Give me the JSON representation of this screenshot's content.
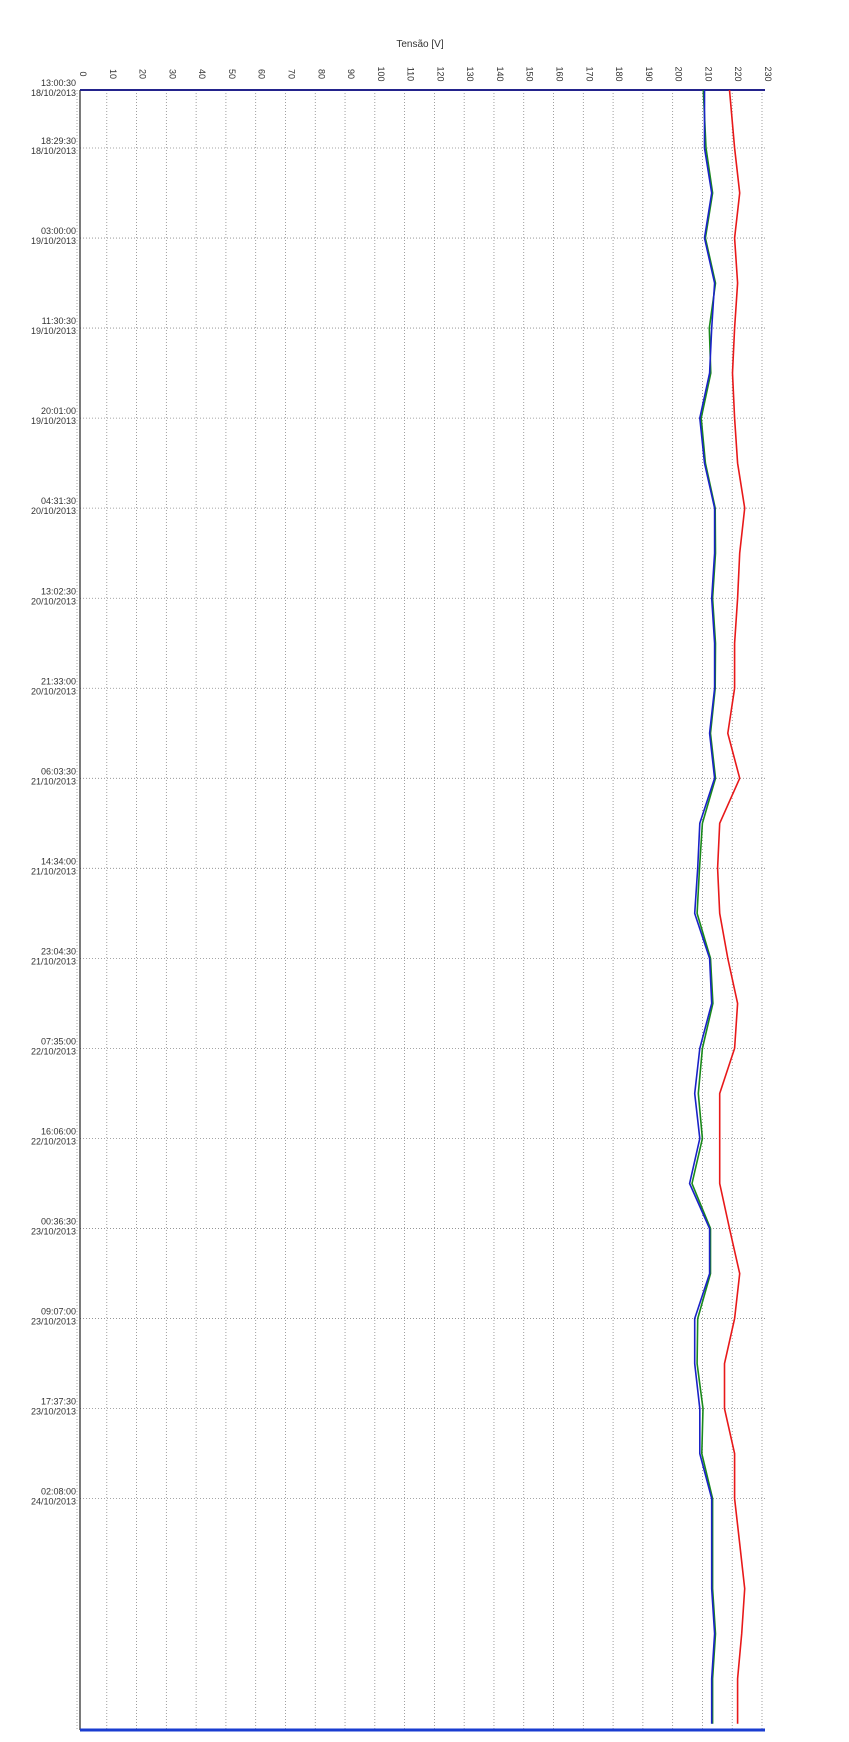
{
  "chart_data": {
    "type": "line",
    "orientation": "vertical-time",
    "title": "Tensão [V]",
    "x": [
      "2013-10-18T13:00:30",
      "2013-10-18T18:29:30",
      "2013-10-18T22:44:45",
      "2013-10-19T03:00:00",
      "2013-10-19T07:15:15",
      "2013-10-19T11:30:30",
      "2013-10-19T15:45:45",
      "2013-10-19T20:01:00",
      "2013-10-20T00:16:15",
      "2013-10-20T04:31:30",
      "2013-10-20T08:47:00",
      "2013-10-20T13:02:30",
      "2013-10-20T17:17:45",
      "2013-10-20T21:33:00",
      "2013-10-21T01:48:15",
      "2013-10-21T06:03:30",
      "2013-10-21T10:18:45",
      "2013-10-21T14:34:00",
      "2013-10-21T18:49:15",
      "2013-10-21T23:04:30",
      "2013-10-22T03:19:45",
      "2013-10-22T07:35:00",
      "2013-10-22T11:50:30",
      "2013-10-22T16:06:00",
      "2013-10-22T20:21:15",
      "2013-10-23T00:36:30",
      "2013-10-23T04:51:45",
      "2013-10-23T09:07:00",
      "2013-10-23T13:22:15",
      "2013-10-23T17:37:30",
      "2013-10-23T21:52:45",
      "2013-10-24T02:08:00",
      "2013-10-24T06:23:15",
      "2013-10-24T10:38:30",
      "2013-10-24T14:53:45",
      "2013-10-24T19:09:00",
      "2013-10-24T23:24:15"
    ],
    "series": [
      {
        "color": "#e8191a",
        "values": [
          219.1,
          220.8,
          222.5,
          220.8,
          221.8,
          220.8,
          220.1,
          220.8,
          221.8,
          224.2,
          222.5,
          221.8,
          220.8,
          220.8,
          218.5,
          222.5,
          215.8,
          215.1,
          215.8,
          218.5,
          221.8,
          220.8,
          215.8,
          215.8,
          215.8,
          219.1,
          222.5,
          220.8,
          217.4,
          217.4,
          220.8,
          220.8,
          222.5,
          224.2,
          223.2,
          221.8,
          221.8
        ]
      },
      {
        "color": "#1a8a1a",
        "values": [
          210.3,
          211.2,
          213.4,
          211.0,
          214.4,
          212.3,
          212.8,
          209.6,
          211.0,
          214.3,
          214.4,
          213.4,
          214.4,
          214.3,
          212.7,
          214.4,
          210.0,
          209.0,
          208.2,
          212.7,
          213.5,
          210.0,
          208.6,
          210.0,
          206.5,
          212.7,
          212.7,
          208.4,
          208.2,
          210.2,
          209.8,
          213.4,
          213.4,
          213.4,
          214.4,
          213.4,
          213.4
        ]
      },
      {
        "color": "#1a22c8",
        "values": [
          210.7,
          210.7,
          213.1,
          210.7,
          214.1,
          213.1,
          212.4,
          209.1,
          210.7,
          214.1,
          214.1,
          213.1,
          214.1,
          214.1,
          212.4,
          214.1,
          209.1,
          208.4,
          207.4,
          212.4,
          213.1,
          209.1,
          207.4,
          209.1,
          205.7,
          212.4,
          212.4,
          207.4,
          207.4,
          209.1,
          209.1,
          213.1,
          213.1,
          213.1,
          214.1,
          213.1,
          213.1
        ]
      }
    ],
    "ylim": [
      0,
      230
    ],
    "yticks": [
      0,
      10,
      20,
      30,
      40,
      50,
      60,
      70,
      80,
      90,
      100,
      110,
      120,
      130,
      140,
      150,
      160,
      170,
      180,
      190,
      200,
      210,
      220,
      230
    ],
    "xlim": [
      "2013-10-18T13:00:30",
      "2013-10-25T00:00:00"
    ],
    "xticks": [
      {
        "value": "2013-10-18T13:00:30",
        "label": [
          "13:00:30",
          "18/10/2013"
        ]
      },
      {
        "value": "2013-10-18T18:29:30",
        "label": [
          "18:29:30",
          "18/10/2013"
        ]
      },
      {
        "value": "2013-10-19T03:00:00",
        "label": [
          "03:00:00",
          "19/10/2013"
        ]
      },
      {
        "value": "2013-10-19T11:30:30",
        "label": [
          "11:30:30",
          "19/10/2013"
        ]
      },
      {
        "value": "2013-10-19T20:01:00",
        "label": [
          "20:01:00",
          "19/10/2013"
        ]
      },
      {
        "value": "2013-10-20T04:31:30",
        "label": [
          "04:31:30",
          "20/10/2013"
        ]
      },
      {
        "value": "2013-10-20T13:02:30",
        "label": [
          "13:02:30",
          "20/10/2013"
        ]
      },
      {
        "value": "2013-10-20T21:33:00",
        "label": [
          "21:33:00",
          "20/10/2013"
        ]
      },
      {
        "value": "2013-10-21T06:03:30",
        "label": [
          "06:03:30",
          "21/10/2013"
        ]
      },
      {
        "value": "2013-10-21T14:34:00",
        "label": [
          "14:34:00",
          "21/10/2013"
        ]
      },
      {
        "value": "2013-10-21T23:04:30",
        "label": [
          "23:04:30",
          "21/10/2013"
        ]
      },
      {
        "value": "2013-10-22T07:35:00",
        "label": [
          "07:35:00",
          "22/10/2013"
        ]
      },
      {
        "value": "2013-10-22T16:06:00",
        "label": [
          "16:06:00",
          "22/10/2013"
        ]
      },
      {
        "value": "2013-10-23T00:36:30",
        "label": [
          "00:36:30",
          "23/10/2013"
        ]
      },
      {
        "value": "2013-10-23T09:07:00",
        "label": [
          "09:07:00",
          "23/10/2013"
        ]
      },
      {
        "value": "2013-10-23T17:37:30",
        "label": [
          "17:37:30",
          "23/10/2013"
        ]
      },
      {
        "value": "2013-10-24T02:08:00",
        "label": [
          "02:08:00",
          "24/10/2013"
        ]
      }
    ],
    "grid": true
  }
}
